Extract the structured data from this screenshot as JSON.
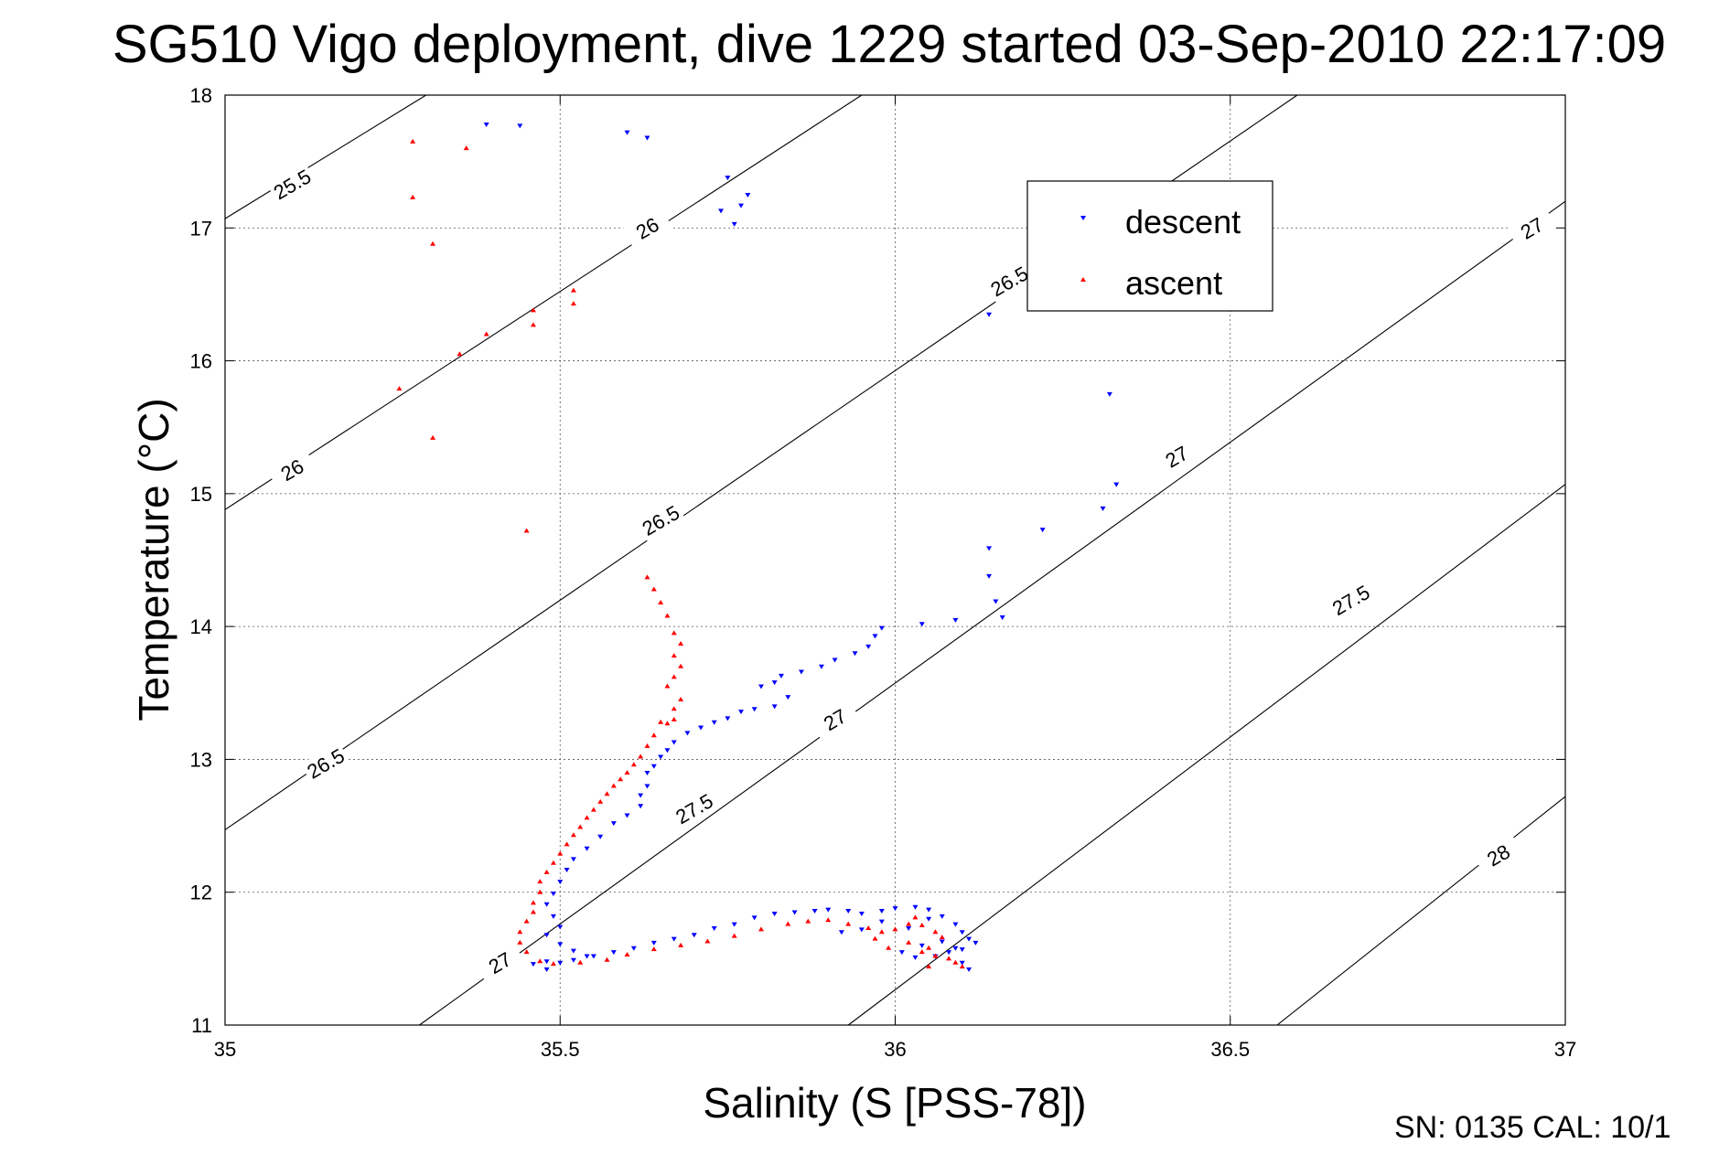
{
  "footer": "SN: 0135  CAL: 10/1",
  "chart_data": {
    "type": "scatter",
    "title": "SG510 Vigo deployment, dive 1229 started 03-Sep-2010 22:17:09",
    "xlabel": "Salinity (S [PSS-78])",
    "ylabel": "Temperature (°C)",
    "xlim": [
      35,
      37
    ],
    "ylim": [
      11,
      18
    ],
    "xticks": [
      35,
      35.5,
      36,
      36.5,
      37
    ],
    "xtick_labels": [
      "35",
      "35.5",
      "36",
      "36.5",
      "37"
    ],
    "yticks": [
      11,
      12,
      13,
      14,
      15,
      16,
      17,
      18
    ],
    "ytick_labels": [
      "11",
      "12",
      "13",
      "14",
      "15",
      "16",
      "17",
      "18"
    ],
    "grid": true,
    "legend_position": "upper-right",
    "series": [
      {
        "name": "descent",
        "color": "#0000ff",
        "marker": "triangle-down",
        "points": [
          [
            35.39,
            17.78
          ],
          [
            35.44,
            17.77
          ],
          [
            35.6,
            17.72
          ],
          [
            35.63,
            17.68
          ],
          [
            35.75,
            17.38
          ],
          [
            35.74,
            17.13
          ],
          [
            35.76,
            17.03
          ],
          [
            35.77,
            17.17
          ],
          [
            35.78,
            17.25
          ],
          [
            36.14,
            16.35
          ],
          [
            36.32,
            15.75
          ],
          [
            36.33,
            15.07
          ],
          [
            36.31,
            14.89
          ],
          [
            36.22,
            14.73
          ],
          [
            36.14,
            14.59
          ],
          [
            36.14,
            14.38
          ],
          [
            36.15,
            14.19
          ],
          [
            36.16,
            14.07
          ],
          [
            36.09,
            14.05
          ],
          [
            36.04,
            14.02
          ],
          [
            35.98,
            13.99
          ],
          [
            35.97,
            13.93
          ],
          [
            35.96,
            13.85
          ],
          [
            35.94,
            13.8
          ],
          [
            35.91,
            13.75
          ],
          [
            35.89,
            13.7
          ],
          [
            35.86,
            13.66
          ],
          [
            35.83,
            13.63
          ],
          [
            35.82,
            13.58
          ],
          [
            35.8,
            13.55
          ],
          [
            35.84,
            13.47
          ],
          [
            35.82,
            13.4
          ],
          [
            35.79,
            13.38
          ],
          [
            35.77,
            13.36
          ],
          [
            35.75,
            13.31
          ],
          [
            35.73,
            13.28
          ],
          [
            35.71,
            13.24
          ],
          [
            35.69,
            13.2
          ],
          [
            35.67,
            13.13
          ],
          [
            35.66,
            13.07
          ],
          [
            35.65,
            13.02
          ],
          [
            35.64,
            12.95
          ],
          [
            35.63,
            12.9
          ],
          [
            35.63,
            12.8
          ],
          [
            35.62,
            12.73
          ],
          [
            35.62,
            12.65
          ],
          [
            35.6,
            12.58
          ],
          [
            35.58,
            12.52
          ],
          [
            35.56,
            12.42
          ],
          [
            35.54,
            12.33
          ],
          [
            35.52,
            12.25
          ],
          [
            35.51,
            12.17
          ],
          [
            35.5,
            12.08
          ],
          [
            35.49,
            11.99
          ],
          [
            35.48,
            11.91
          ],
          [
            35.49,
            11.82
          ],
          [
            35.5,
            11.74
          ],
          [
            35.48,
            11.68
          ],
          [
            35.5,
            11.61
          ],
          [
            35.52,
            11.56
          ],
          [
            35.54,
            11.52
          ],
          [
            35.5,
            11.47
          ],
          [
            35.48,
            11.42
          ],
          [
            35.46,
            11.46
          ],
          [
            35.48,
            11.48
          ],
          [
            35.52,
            11.49
          ],
          [
            35.55,
            11.52
          ],
          [
            35.58,
            11.55
          ],
          [
            35.61,
            11.58
          ],
          [
            35.64,
            11.62
          ],
          [
            35.67,
            11.65
          ],
          [
            35.7,
            11.68
          ],
          [
            35.73,
            11.73
          ],
          [
            35.76,
            11.76
          ],
          [
            35.79,
            11.81
          ],
          [
            35.82,
            11.84
          ],
          [
            35.85,
            11.85
          ],
          [
            35.88,
            11.86
          ],
          [
            35.9,
            11.87
          ],
          [
            35.93,
            11.86
          ],
          [
            35.95,
            11.84
          ],
          [
            35.98,
            11.86
          ],
          [
            36.0,
            11.88
          ],
          [
            36.03,
            11.89
          ],
          [
            36.05,
            11.87
          ],
          [
            36.07,
            11.82
          ],
          [
            36.09,
            11.76
          ],
          [
            36.1,
            11.7
          ],
          [
            36.11,
            11.65
          ],
          [
            36.12,
            11.62
          ],
          [
            36.1,
            11.57
          ],
          [
            36.08,
            11.55
          ],
          [
            36.06,
            11.52
          ],
          [
            36.03,
            11.51
          ],
          [
            36.01,
            11.55
          ],
          [
            36.04,
            11.6
          ],
          [
            36.07,
            11.63
          ],
          [
            36.09,
            11.58
          ],
          [
            36.1,
            11.47
          ],
          [
            36.11,
            11.42
          ],
          [
            36.02,
            11.73
          ],
          [
            35.98,
            11.78
          ],
          [
            36.05,
            11.8
          ],
          [
            35.95,
            11.72
          ],
          [
            35.92,
            11.7
          ]
        ]
      },
      {
        "name": "ascent",
        "color": "#ff0000",
        "marker": "triangle-up",
        "points": [
          [
            35.28,
            17.65
          ],
          [
            35.36,
            17.6
          ],
          [
            35.28,
            17.23
          ],
          [
            35.31,
            16.88
          ],
          [
            35.52,
            16.53
          ],
          [
            35.52,
            16.43
          ],
          [
            35.46,
            16.38
          ],
          [
            35.46,
            16.27
          ],
          [
            35.39,
            16.2
          ],
          [
            35.35,
            16.05
          ],
          [
            35.26,
            15.79
          ],
          [
            35.31,
            15.42
          ],
          [
            35.45,
            14.72
          ],
          [
            35.63,
            14.37
          ],
          [
            35.64,
            14.28
          ],
          [
            35.65,
            14.18
          ],
          [
            35.66,
            14.08
          ],
          [
            35.67,
            13.95
          ],
          [
            35.68,
            13.87
          ],
          [
            35.67,
            13.78
          ],
          [
            35.68,
            13.7
          ],
          [
            35.67,
            13.62
          ],
          [
            35.66,
            13.55
          ],
          [
            35.68,
            13.45
          ],
          [
            35.67,
            13.38
          ],
          [
            35.67,
            13.3
          ],
          [
            35.66,
            13.27
          ],
          [
            35.65,
            13.28
          ],
          [
            35.64,
            13.18
          ],
          [
            35.63,
            13.1
          ],
          [
            35.62,
            13.02
          ],
          [
            35.61,
            12.96
          ],
          [
            35.6,
            12.9
          ],
          [
            35.59,
            12.85
          ],
          [
            35.58,
            12.8
          ],
          [
            35.57,
            12.74
          ],
          [
            35.56,
            12.68
          ],
          [
            35.55,
            12.62
          ],
          [
            35.54,
            12.56
          ],
          [
            35.53,
            12.49
          ],
          [
            35.52,
            12.43
          ],
          [
            35.51,
            12.36
          ],
          [
            35.5,
            12.29
          ],
          [
            35.49,
            12.22
          ],
          [
            35.48,
            12.15
          ],
          [
            35.47,
            12.08
          ],
          [
            35.47,
            12.0
          ],
          [
            35.46,
            11.92
          ],
          [
            35.46,
            11.85
          ],
          [
            35.45,
            11.78
          ],
          [
            35.44,
            11.7
          ],
          [
            35.44,
            11.62
          ],
          [
            35.45,
            11.55
          ],
          [
            35.47,
            11.48
          ],
          [
            35.49,
            11.46
          ],
          [
            35.53,
            11.47
          ],
          [
            35.57,
            11.49
          ],
          [
            35.6,
            11.53
          ],
          [
            35.64,
            11.57
          ],
          [
            35.68,
            11.6
          ],
          [
            35.72,
            11.63
          ],
          [
            35.76,
            11.67
          ],
          [
            35.8,
            11.72
          ],
          [
            35.84,
            11.76
          ],
          [
            35.87,
            11.78
          ],
          [
            35.9,
            11.79
          ],
          [
            35.93,
            11.76
          ],
          [
            35.96,
            11.73
          ],
          [
            35.98,
            11.7
          ],
          [
            36.0,
            11.72
          ],
          [
            36.02,
            11.76
          ],
          [
            36.04,
            11.75
          ],
          [
            36.06,
            11.7
          ],
          [
            36.07,
            11.66
          ],
          [
            36.05,
            11.58
          ],
          [
            36.04,
            11.55
          ],
          [
            36.06,
            11.52
          ],
          [
            36.08,
            11.5
          ],
          [
            36.09,
            11.47
          ],
          [
            36.1,
            11.44
          ],
          [
            36.05,
            11.44
          ],
          [
            36.02,
            11.62
          ],
          [
            35.99,
            11.58
          ],
          [
            35.97,
            11.65
          ],
          [
            36.03,
            11.81
          ]
        ]
      }
    ],
    "contours": [
      {
        "label": "25.5",
        "points": [
          [
            35.0,
            17.07
          ],
          [
            35.3,
            18.0
          ]
        ],
        "label_at": [
          35.1,
          17.33
        ],
        "label_angle": -30
      },
      {
        "label": "26",
        "points": [
          [
            35.0,
            14.88
          ],
          [
            35.95,
            18.0
          ]
        ],
        "label_at": [
          35.1,
          15.18
        ],
        "label_angle": -30
      },
      {
        "label": "26",
        "points": [
          [
            35.0,
            14.88
          ],
          [
            35.95,
            18.0
          ]
        ],
        "label_at": [
          35.63,
          17.0
        ],
        "label_angle": -30
      },
      {
        "label": "26.5",
        "points": [
          [
            35.0,
            12.47
          ],
          [
            36.6,
            18.0
          ]
        ],
        "label_at": [
          35.65,
          14.8
        ],
        "label_angle": -30
      },
      {
        "label": "26.5",
        "points": [
          [
            35.0,
            12.47
          ],
          [
            36.6,
            18.0
          ]
        ],
        "label_at": [
          35.15,
          12.97
        ],
        "label_angle": -30
      },
      {
        "label": "26.5",
        "points": [
          [
            35.0,
            12.47
          ],
          [
            36.6,
            18.0
          ]
        ],
        "label_at": [
          36.17,
          16.6
        ],
        "label_angle": -30
      },
      {
        "label": "27",
        "points": [
          [
            35.29,
            11.0
          ],
          [
            37.0,
            17.2
          ]
        ],
        "label_at": [
          35.41,
          11.47
        ],
        "label_angle": -30
      },
      {
        "label": "27",
        "points": [
          [
            35.29,
            11.0
          ],
          [
            37.0,
            17.2
          ]
        ],
        "label_at": [
          35.91,
          13.3
        ],
        "label_angle": -30
      },
      {
        "label": "27",
        "points": [
          [
            35.29,
            11.0
          ],
          [
            37.0,
            17.2
          ]
        ],
        "label_at": [
          36.42,
          15.28
        ],
        "label_angle": -30
      },
      {
        "label": "27",
        "points": [
          [
            35.29,
            11.0
          ],
          [
            37.0,
            17.2
          ]
        ],
        "label_at": [
          36.95,
          17.0
        ],
        "label_angle": -30
      },
      {
        "label": "27.5",
        "points": [
          [
            35.93,
            11.0
          ],
          [
            37.0,
            15.07
          ]
        ],
        "label_at": [
          35.7,
          12.63
        ],
        "label_angle": -30
      },
      {
        "label": "27.5",
        "points": [
          [
            35.93,
            11.0
          ],
          [
            37.0,
            15.07
          ]
        ],
        "label_at": [
          36.68,
          14.2
        ],
        "label_angle": -30
      },
      {
        "label": "28",
        "points": [
          [
            36.57,
            11.0
          ],
          [
            37.0,
            12.72
          ]
        ],
        "label_at": [
          36.9,
          12.28
        ],
        "label_angle": -30
      }
    ]
  }
}
